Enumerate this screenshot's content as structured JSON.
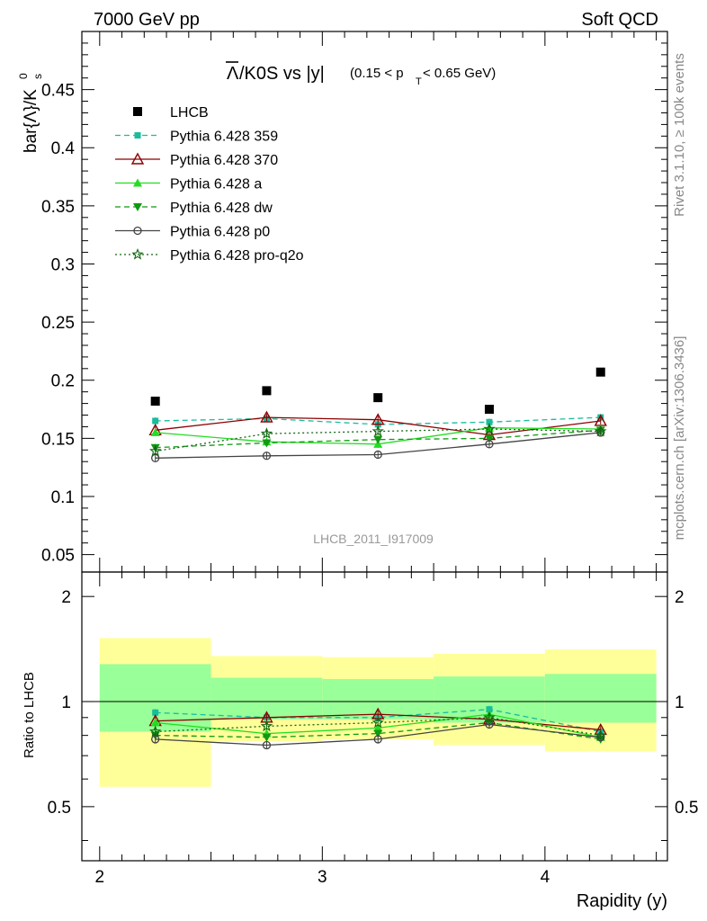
{
  "header": {
    "left": "7000 GeV pp",
    "right": "Soft QCD"
  },
  "side_labels": {
    "top": "Rivet 3.1.10, ≥ 100k events",
    "bottom": "mcplots.cern.ch [arXiv:1306.3436]"
  },
  "watermark": "LHCB_2011_I917009",
  "colors": {
    "lhcb": "#000000",
    "p359": "#1abc9c",
    "p370": "#8b0000",
    "pa": "#22dd22",
    "pdw": "#119911",
    "pp0": "#444444",
    "pq2o": "#116611",
    "band_outer": "#ffff99",
    "band_inner": "#99ff99"
  },
  "chart_data": [
    {
      "type": "line",
      "title": {
        "bar_symbol": "Λ",
        "main": "/K0S vs |y|",
        "cut_open": "(0.15 < p",
        "cut_sub": "T",
        "cut_close": " < 0.65 GeV)"
      },
      "ylabel": {
        "main": "bar{Λ}/K",
        "sub": "s",
        "sup": "0"
      },
      "xlim": [
        1.92,
        4.55
      ],
      "ylim": [
        0.035,
        0.5
      ],
      "yticks": [
        0.05,
        0.1,
        0.15,
        0.2,
        0.25,
        0.3,
        0.35,
        0.4,
        0.45
      ],
      "ytick_labels": [
        "0.05",
        "0.1",
        "0.15",
        "0.2",
        "0.25",
        "0.3",
        "0.35",
        "0.4",
        "0.45"
      ],
      "x": [
        2.25,
        2.75,
        3.25,
        3.75,
        4.25
      ],
      "series": [
        {
          "key": "lhcb",
          "name": "LHCB",
          "values": [
            0.182,
            0.191,
            0.185,
            0.175,
            0.207
          ]
        },
        {
          "key": "p359",
          "name": "Pythia 6.428 359",
          "values": [
            0.165,
            0.167,
            0.162,
            0.164,
            0.168
          ]
        },
        {
          "key": "p370",
          "name": "Pythia 6.428 370",
          "values": [
            0.157,
            0.168,
            0.166,
            0.153,
            0.165
          ]
        },
        {
          "key": "pa",
          "name": "Pythia 6.428 a",
          "values": [
            0.155,
            0.147,
            0.145,
            0.159,
            0.158
          ]
        },
        {
          "key": "pdw",
          "name": "Pythia 6.428 dw",
          "values": [
            0.142,
            0.146,
            0.149,
            0.15,
            0.157
          ]
        },
        {
          "key": "pp0",
          "name": "Pythia 6.428 p0",
          "values": [
            0.133,
            0.135,
            0.136,
            0.145,
            0.155
          ]
        },
        {
          "key": "pq2o",
          "name": "Pythia 6.428 pro-q2o",
          "values": [
            0.139,
            0.154,
            0.156,
            0.158,
            0.156
          ]
        }
      ]
    },
    {
      "type": "line",
      "ylabel": "Ratio to LHCB",
      "xlabel": "Rapidity (y)",
      "xlim": [
        1.92,
        4.55
      ],
      "ylim": [
        0.35,
        2.35
      ],
      "xticks": [
        2,
        3,
        4
      ],
      "xtick_labels": [
        "2",
        "3",
        "4"
      ],
      "yticks": [
        0.5,
        1,
        2
      ],
      "ytick_labels": [
        "0.5",
        "1",
        "2"
      ],
      "x_edges": [
        2.0,
        2.5,
        3.0,
        3.5,
        4.0,
        4.5
      ],
      "band_outer": [
        [
          0.57,
          1.52
        ],
        [
          0.77,
          1.35
        ],
        [
          0.78,
          1.34
        ],
        [
          0.75,
          1.37
        ],
        [
          0.72,
          1.41
        ]
      ],
      "band_inner": [
        [
          0.82,
          1.28
        ],
        [
          0.89,
          1.17
        ],
        [
          0.89,
          1.16
        ],
        [
          0.87,
          1.18
        ],
        [
          0.87,
          1.2
        ]
      ],
      "x": [
        2.25,
        2.75,
        3.25,
        3.75,
        4.25
      ],
      "series": [
        {
          "key": "p359",
          "values": [
            0.93,
            0.9,
            0.9,
            0.95,
            0.82
          ]
        },
        {
          "key": "p370",
          "values": [
            0.88,
            0.9,
            0.92,
            0.89,
            0.83
          ]
        },
        {
          "key": "pa",
          "values": [
            0.87,
            0.81,
            0.84,
            0.92,
            0.79
          ]
        },
        {
          "key": "pdw",
          "values": [
            0.8,
            0.79,
            0.81,
            0.87,
            0.78
          ]
        },
        {
          "key": "pp0",
          "values": [
            0.78,
            0.75,
            0.78,
            0.86,
            0.79
          ]
        },
        {
          "key": "pq2o",
          "values": [
            0.82,
            0.85,
            0.87,
            0.9,
            0.8
          ]
        }
      ]
    }
  ]
}
